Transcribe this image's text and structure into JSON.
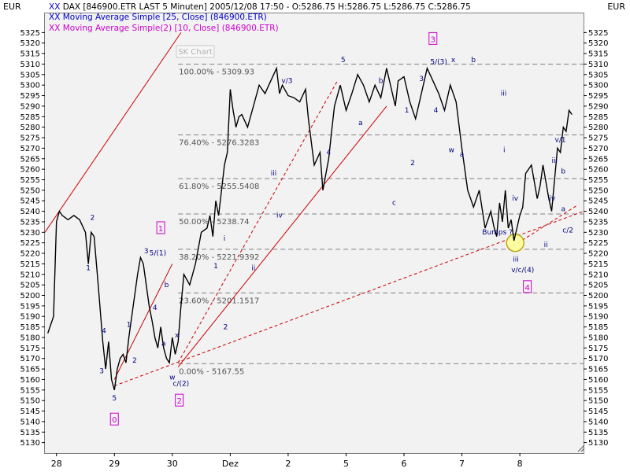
{
  "header": {
    "currency_left": "EUR",
    "currency_right": "EUR",
    "line1": "DAX [846900.ETR LAST 5 Minuten] 2005/12/08 17:50 - O:5286.75 H:5286.75 L:5286.75 C:5286.75",
    "line2": "Moving Average Simple [25, Close] (846900.ETR)",
    "line3": "Moving Average Simple(2) [10, Close] (846900.ETR)",
    "marker": "XX",
    "color_line2": "#0000cc",
    "color_line3": "#cc00cc",
    "watermark": "SK Chart"
  },
  "chart_data": {
    "type": "line",
    "ylim": [
      5125,
      5330
    ],
    "yticks": [
      5130,
      5135,
      5140,
      5145,
      5150,
      5155,
      5160,
      5165,
      5170,
      5175,
      5180,
      5185,
      5190,
      5195,
      5200,
      5205,
      5210,
      5215,
      5220,
      5225,
      5230,
      5235,
      5240,
      5245,
      5250,
      5255,
      5260,
      5265,
      5270,
      5275,
      5280,
      5285,
      5290,
      5295,
      5300,
      5305,
      5310,
      5315,
      5320,
      5325
    ],
    "xtick_labels": [
      "28",
      "29",
      "30",
      "Dez",
      "2",
      "5",
      "6",
      "7",
      "8"
    ],
    "xtick_positions": [
      0,
      1,
      2,
      3,
      4,
      5,
      6,
      7,
      8
    ],
    "xlim": [
      -0.2,
      9.1
    ],
    "series": [
      {
        "color": "#000000",
        "x": [
          -0.15,
          -0.05,
          0.0,
          0.05,
          0.1,
          0.2,
          0.3,
          0.4,
          0.5,
          0.55,
          0.6,
          0.65,
          0.72,
          0.8,
          0.85,
          0.9,
          0.95,
          1.0,
          1.05,
          1.1,
          1.15,
          1.2,
          1.25,
          1.3,
          1.35,
          1.4,
          1.45,
          1.5,
          1.55,
          1.6,
          1.65,
          1.7,
          1.75,
          1.8,
          1.85,
          1.9,
          1.95,
          2.0,
          2.05,
          2.1,
          2.15,
          2.2,
          2.3,
          2.4,
          2.5,
          2.6,
          2.65,
          2.7,
          2.75,
          2.8,
          2.85,
          2.9,
          2.95,
          3.0,
          3.05,
          3.1,
          3.15,
          3.2,
          3.3,
          3.4,
          3.5,
          3.6,
          3.7,
          3.8,
          3.85,
          3.9,
          4.0,
          4.1,
          4.2,
          4.3,
          4.35,
          4.45,
          4.55,
          4.6,
          4.7,
          4.75,
          4.8,
          4.9,
          5.0,
          5.1,
          5.2,
          5.3,
          5.4,
          5.5,
          5.6,
          5.7,
          5.8,
          5.85,
          5.9,
          6.0,
          6.1,
          6.2,
          6.3,
          6.4,
          6.5,
          6.6,
          6.7,
          6.8,
          6.9,
          7.0,
          7.1,
          7.2,
          7.3,
          7.4,
          7.5,
          7.55,
          7.6,
          7.65,
          7.7,
          7.75,
          7.8,
          7.85,
          7.9,
          8.0,
          8.05,
          8.1,
          8.2,
          8.3,
          8.35,
          8.4,
          8.5,
          8.55,
          8.6,
          8.65,
          8.7,
          8.75,
          8.8,
          8.85,
          8.9
        ],
        "y": [
          5182,
          5190,
          5235,
          5240,
          5238,
          5236,
          5238,
          5236,
          5230,
          5215,
          5230,
          5228,
          5205,
          5178,
          5165,
          5178,
          5160,
          5155,
          5165,
          5170,
          5172,
          5168,
          5180,
          5190,
          5200,
          5210,
          5218,
          5215,
          5205,
          5195,
          5188,
          5180,
          5175,
          5185,
          5175,
          5170,
          5168,
          5180,
          5172,
          5178,
          5195,
          5210,
          5205,
          5215,
          5230,
          5232,
          5238,
          5228,
          5245,
          5238,
          5250,
          5262,
          5268,
          5298,
          5288,
          5280,
          5285,
          5286,
          5280,
          5290,
          5300,
          5296,
          5302,
          5308,
          5296,
          5300,
          5295,
          5294,
          5292,
          5298,
          5284,
          5262,
          5268,
          5250,
          5265,
          5278,
          5290,
          5300,
          5288,
          5296,
          5305,
          5300,
          5292,
          5300,
          5294,
          5308,
          5296,
          5290,
          5302,
          5304,
          5292,
          5284,
          5296,
          5308,
          5302,
          5296,
          5288,
          5300,
          5292,
          5270,
          5250,
          5242,
          5250,
          5232,
          5240,
          5233,
          5228,
          5244,
          5235,
          5250,
          5232,
          5236,
          5226,
          5238,
          5242,
          5258,
          5262,
          5246,
          5252,
          5262,
          5246,
          5240,
          5255,
          5270,
          5268,
          5280,
          5278,
          5288,
          5286
        ]
      },
      {
        "color": "#cc0000",
        "x": [
          -0.2,
          2.15
        ],
        "y": [
          5230,
          5325
        ]
      },
      {
        "color": "#cc0000",
        "x": [
          1.0,
          2.0
        ],
        "y": [
          5160,
          5215
        ]
      },
      {
        "color": "#cc0000",
        "x": [
          2.1,
          5.7
        ],
        "y": [
          5166,
          5290
        ]
      }
    ],
    "dashed_series": [
      {
        "color": "#cc0000",
        "x": [
          1.0,
          9.1
        ],
        "y": [
          5157,
          5240
        ]
      },
      {
        "color": "#cc0000",
        "x": [
          2.1,
          4.85
        ],
        "y": [
          5168,
          5302
        ]
      },
      {
        "color": "#cc0000",
        "x": [
          7.8,
          9.0
        ],
        "y": [
          5222,
          5243
        ]
      }
    ],
    "fib_levels": [
      {
        "label": "100.00% - 5309.93",
        "value": 5309.93
      },
      {
        "label": "76.40% - 5276.3283",
        "value": 5276.3283
      },
      {
        "label": "61.80% - 5255.5408",
        "value": 5255.5408
      },
      {
        "label": "50.00% - 5238.74",
        "value": 5238.74
      },
      {
        "label": "38.20% - 5221.9392",
        "value": 5221.9392
      },
      {
        "label": "23.60% - 5201.1517",
        "value": 5201.1517
      },
      {
        "label": "0.00% - 5167.55",
        "value": 5167.55
      }
    ],
    "wave_labels": [
      {
        "text": "2",
        "x": 0.62,
        "y": 5236
      },
      {
        "text": "1",
        "x": 0.55,
        "y": 5212
      },
      {
        "text": "4",
        "x": 0.82,
        "y": 5182
      },
      {
        "text": "3",
        "x": 0.78,
        "y": 5163
      },
      {
        "text": "5",
        "x": 1.0,
        "y": 5150
      },
      {
        "text": "1",
        "x": 1.25,
        "y": 5185
      },
      {
        "text": "2",
        "x": 1.35,
        "y": 5168
      },
      {
        "text": "3",
        "x": 1.55,
        "y": 5220
      },
      {
        "text": "5/(1)",
        "x": 1.75,
        "y": 5219
      },
      {
        "text": "4",
        "x": 1.7,
        "y": 5193
      },
      {
        "text": "b",
        "x": 1.9,
        "y": 5204
      },
      {
        "text": "a",
        "x": 1.85,
        "y": 5176
      },
      {
        "text": "x",
        "x": 2.08,
        "y": 5180
      },
      {
        "text": "w",
        "x": 2.0,
        "y": 5160
      },
      {
        "text": "c/(2)",
        "x": 2.15,
        "y": 5157
      },
      {
        "text": "1",
        "x": 2.75,
        "y": 5213
      },
      {
        "text": "i",
        "x": 2.9,
        "y": 5226
      },
      {
        "text": "2",
        "x": 2.92,
        "y": 5184
      },
      {
        "text": "ii",
        "x": 3.4,
        "y": 5212
      },
      {
        "text": "iii",
        "x": 3.75,
        "y": 5257
      },
      {
        "text": "iv",
        "x": 3.85,
        "y": 5237
      },
      {
        "text": "v/3",
        "x": 3.98,
        "y": 5301
      },
      {
        "text": "4",
        "x": 4.7,
        "y": 5267
      },
      {
        "text": "5",
        "x": 4.95,
        "y": 5311
      },
      {
        "text": "a",
        "x": 5.25,
        "y": 5281
      },
      {
        "text": "b",
        "x": 5.6,
        "y": 5301
      },
      {
        "text": "c",
        "x": 5.83,
        "y": 5243
      },
      {
        "text": "1",
        "x": 6.05,
        "y": 5287
      },
      {
        "text": "2",
        "x": 6.15,
        "y": 5262
      },
      {
        "text": "3",
        "x": 6.3,
        "y": 5302
      },
      {
        "text": "4",
        "x": 6.55,
        "y": 5287
      },
      {
        "text": "5/(3)",
        "x": 6.6,
        "y": 5310
      },
      {
        "text": "x",
        "x": 6.85,
        "y": 5311
      },
      {
        "text": "w",
        "x": 6.82,
        "y": 5268
      },
      {
        "text": "a",
        "x": 7.0,
        "y": 5266
      },
      {
        "text": "b",
        "x": 7.2,
        "y": 5311
      },
      {
        "text": "iii",
        "x": 7.72,
        "y": 5295
      },
      {
        "text": "i",
        "x": 7.73,
        "y": 5268
      },
      {
        "text": "iv",
        "x": 7.92,
        "y": 5245
      },
      {
        "text": "iii",
        "x": 7.93,
        "y": 5216
      },
      {
        "text": "v/c/(4)",
        "x": 8.05,
        "y": 5211
      },
      {
        "text": "ii",
        "x": 8.45,
        "y": 5223
      },
      {
        "text": "v/1",
        "x": 8.7,
        "y": 5273
      },
      {
        "text": "iii",
        "x": 8.6,
        "y": 5263
      },
      {
        "text": "b",
        "x": 8.75,
        "y": 5258
      },
      {
        "text": "iv",
        "x": 8.56,
        "y": 5245
      },
      {
        "text": "a",
        "x": 8.75,
        "y": 5240
      },
      {
        "text": "c/2",
        "x": 8.83,
        "y": 5230
      }
    ],
    "boxed_labels": [
      {
        "text": "0",
        "x": 1.0,
        "y": 5141
      },
      {
        "text": "1",
        "x": 1.8,
        "y": 5232
      },
      {
        "text": "2",
        "x": 2.12,
        "y": 5150
      },
      {
        "text": "3",
        "x": 6.5,
        "y": 5322
      },
      {
        "text": "4",
        "x": 8.13,
        "y": 5204
      }
    ],
    "annotation": {
      "text": "Bumps ?",
      "x": 7.35,
      "y": 5229
    },
    "circle": {
      "x": 7.92,
      "y": 5225
    }
  }
}
